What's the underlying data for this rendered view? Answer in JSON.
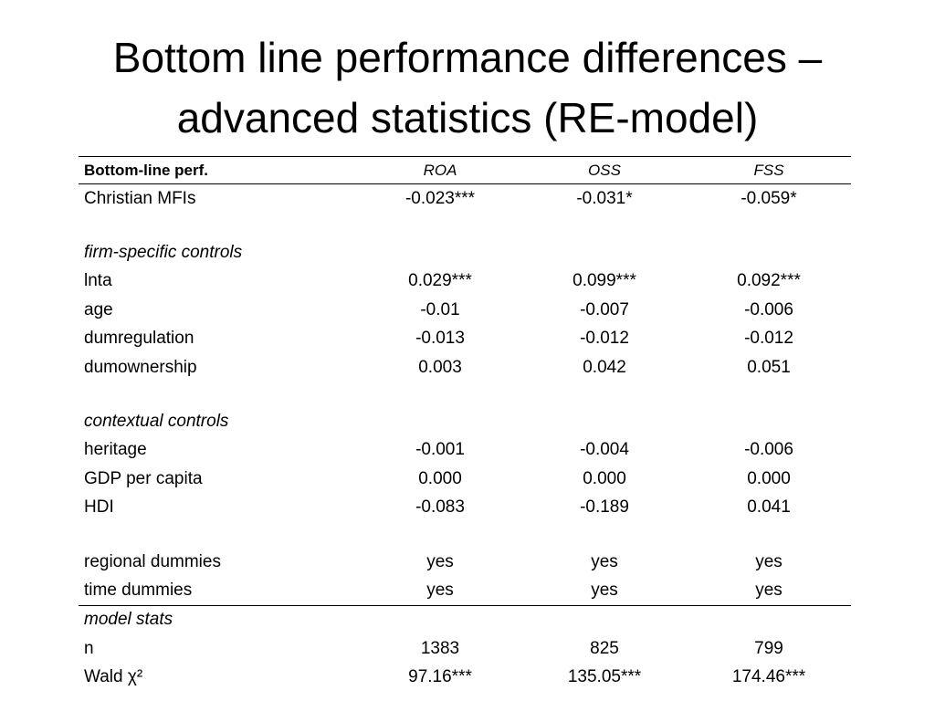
{
  "title": {
    "line1": "Bottom line performance differences –",
    "line2": "advanced statistics (RE-model)"
  },
  "table": {
    "header": {
      "label": "Bottom-line perf.",
      "col1": "ROA",
      "col2": "OSS",
      "col3": "FSS"
    },
    "rows": {
      "christian": {
        "label": "Christian MFIs",
        "v1": "-0.023***",
        "v2": "-0.031*",
        "v3": "-0.059*"
      },
      "firm_section": "firm-specific controls",
      "lnta": {
        "label": "lnta",
        "v1": "0.029***",
        "v2": "0.099***",
        "v3": "0.092***"
      },
      "age": {
        "label": "age",
        "v1": "-0.01",
        "v2": "-0.007",
        "v3": "-0.006"
      },
      "dumregulation": {
        "label": "dumregulation",
        "v1": "-0.013",
        "v2": "-0.012",
        "v3": "-0.012"
      },
      "dumownership": {
        "label": "dumownership",
        "v1": "0.003",
        "v2": "0.042",
        "v3": "0.051"
      },
      "context_section": "contextual controls",
      "heritage": {
        "label": "heritage",
        "v1": "-0.001",
        "v2": "-0.004",
        "v3": "-0.006"
      },
      "gdp": {
        "label": "GDP per capita",
        "v1": "0.000",
        "v2": "0.000",
        "v3": "0.000"
      },
      "hdi": {
        "label": "HDI",
        "v1": "-0.083",
        "v2": "-0.189",
        "v3": "0.041"
      },
      "regional": {
        "label": "regional dummies",
        "v1": "yes",
        "v2": "yes",
        "v3": "yes"
      },
      "time": {
        "label": "time dummies",
        "v1": "yes",
        "v2": "yes",
        "v3": "yes"
      },
      "stats_section": "model stats",
      "n": {
        "label": "n",
        "v1": "1383",
        "v2": "825",
        "v3": "799"
      },
      "wald": {
        "label": "Wald χ²",
        "v1": "97.16***",
        "v2": "135.05***",
        "v3": "174.46***"
      }
    }
  }
}
